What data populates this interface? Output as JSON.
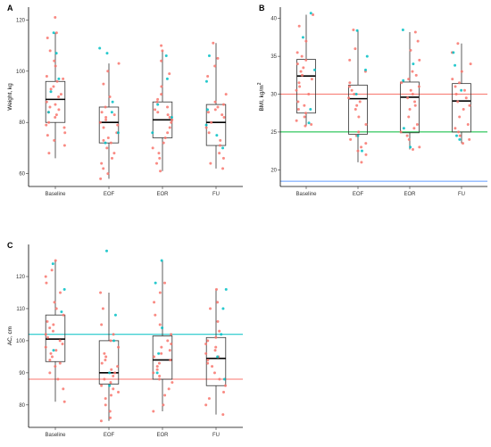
{
  "chart_data": [
    {
      "panel": "A",
      "type": "box",
      "xlabel": "",
      "ylabel": "Weight, kg",
      "categories": [
        "Baseline",
        "EOF",
        "EOR",
        "FU"
      ],
      "ylim": [
        55,
        125
      ],
      "yticks": [
        60,
        80,
        100,
        120
      ],
      "boxes": [
        {
          "min": 66,
          "q1": 80,
          "median": 89,
          "q3": 96,
          "max": 115
        },
        {
          "min": 58,
          "q1": 72,
          "median": 80,
          "q3": 86,
          "max": 103
        },
        {
          "min": 61,
          "q1": 74,
          "median": 81,
          "q3": 88,
          "max": 108
        },
        {
          "min": 62,
          "q1": 71,
          "median": 80,
          "q3": 87,
          "max": 111
        }
      ],
      "reference_lines": [],
      "points": [
        {
          "cat": 0,
          "values": [
            121,
            115,
            113,
            108,
            104,
            102,
            98,
            97,
            96,
            94,
            93,
            91,
            90,
            88,
            87,
            86,
            85,
            84,
            83,
            82,
            80,
            79,
            78,
            76,
            75,
            73,
            71,
            68
          ],
          "color": "#f8766d"
        },
        {
          "cat": 0,
          "values": [
            115,
            107,
            97,
            92,
            84
          ],
          "color": "#00bfc4"
        },
        {
          "cat": 1,
          "values": [
            103,
            100,
            95,
            90,
            86,
            84,
            83,
            82,
            81,
            80,
            79,
            78,
            76,
            74,
            73,
            72,
            70,
            68,
            66,
            64,
            62,
            60,
            58
          ],
          "color": "#f8766d"
        },
        {
          "cat": 1,
          "values": [
            109,
            107,
            88,
            84,
            76,
            72
          ],
          "color": "#00bfc4"
        },
        {
          "cat": 2,
          "values": [
            110,
            108,
            104,
            99,
            94,
            91,
            89,
            88,
            86,
            85,
            84,
            83,
            82,
            81,
            80,
            78,
            76,
            74,
            72,
            70,
            68,
            66,
            64,
            61
          ],
          "color": "#f8766d"
        },
        {
          "cat": 2,
          "values": [
            106,
            97,
            87,
            82,
            76
          ],
          "color": "#00bfc4"
        },
        {
          "cat": 3,
          "values": [
            111,
            105,
            102,
            98,
            91,
            88,
            87,
            86,
            85,
            84,
            83,
            82,
            80,
            78,
            76,
            73,
            71,
            68,
            66,
            64,
            62
          ],
          "color": "#f8766d"
        },
        {
          "cat": 3,
          "values": [
            106,
            96,
            85,
            79,
            75,
            70
          ],
          "color": "#00bfc4"
        }
      ]
    },
    {
      "panel": "B",
      "type": "box",
      "xlabel": "",
      "ylabel": "BMI, kg/m",
      "ylabel_superscript": "2",
      "categories": [
        "Baseline",
        "EOF",
        "EOR",
        "FU"
      ],
      "ylim": [
        17.8,
        41.5
      ],
      "yticks": [
        20,
        25,
        30,
        35,
        40
      ],
      "boxes": [
        {
          "min": 25.8,
          "q1": 27.5,
          "median": 32.4,
          "q3": 34.6,
          "max": 40.5
        },
        {
          "min": 21.0,
          "q1": 24.7,
          "median": 29.4,
          "q3": 31.2,
          "max": 38.5
        },
        {
          "min": 22.7,
          "q1": 24.9,
          "median": 29.6,
          "q3": 31.6,
          "max": 38.2
        },
        {
          "min": 23.5,
          "q1": 25.0,
          "median": 29.1,
          "q3": 31.4,
          "max": 36.7
        }
      ],
      "reference_lines": [
        {
          "y": 30,
          "color": "#f8766d"
        },
        {
          "y": 25,
          "color": "#00ba38"
        },
        {
          "y": 18.5,
          "color": "#619cff"
        }
      ],
      "points": [
        {
          "cat": 0,
          "values": [
            40.5,
            39.0,
            37.0,
            35.5,
            35.0,
            34.5,
            34.0,
            33.5,
            33.0,
            32.5,
            32.0,
            31.5,
            31.0,
            30.5,
            30.0,
            29.0,
            28.5,
            28.0,
            27.5,
            27.0,
            26.5,
            26.0,
            25.8
          ],
          "color": "#f8766d"
        },
        {
          "cat": 0,
          "values": [
            40.7,
            37.5,
            33.2,
            28.0,
            26.2
          ],
          "color": "#00bfc4"
        },
        {
          "cat": 1,
          "values": [
            38.5,
            36.0,
            34.5,
            33.0,
            31.5,
            31.0,
            30.5,
            30.0,
            29.5,
            29.0,
            28.5,
            28.0,
            27.0,
            26.0,
            25.0,
            24.5,
            24.0,
            23.5,
            23.0,
            22.5,
            22.0,
            21.0
          ],
          "color": "#f8766d"
        },
        {
          "cat": 1,
          "values": [
            38.4,
            35.0,
            33.2,
            30.0,
            24.5,
            22.5
          ],
          "color": "#00bfc4"
        },
        {
          "cat": 2,
          "values": [
            38.2,
            37.0,
            35.8,
            34.5,
            33.0,
            32.5,
            32.0,
            31.5,
            31.0,
            30.5,
            30.0,
            29.5,
            29.0,
            28.5,
            28.0,
            27.0,
            26.0,
            25.5,
            25.0,
            24.5,
            24.0,
            23.0,
            22.7
          ],
          "color": "#f8766d"
        },
        {
          "cat": 2,
          "values": [
            38.5,
            34.0,
            31.8,
            25.5,
            23.0
          ],
          "color": "#00bfc4"
        },
        {
          "cat": 3,
          "values": [
            36.7,
            35.5,
            34.0,
            33.0,
            32.0,
            31.5,
            31.0,
            30.5,
            30.0,
            29.5,
            29.0,
            28.5,
            28.0,
            27.0,
            26.0,
            25.5,
            25.0,
            24.5,
            24.0,
            23.5
          ],
          "color": "#f8766d"
        },
        {
          "cat": 3,
          "values": [
            35.5,
            33.8,
            30.5,
            24.5,
            24.0
          ],
          "color": "#00bfc4"
        }
      ]
    },
    {
      "panel": "C",
      "type": "box",
      "xlabel": "",
      "ylabel": "AC, cm",
      "categories": [
        "Baseline",
        "EOF",
        "EOR",
        "FU"
      ],
      "ylim": [
        73,
        130
      ],
      "yticks": [
        80,
        90,
        100,
        110,
        120
      ],
      "boxes": [
        {
          "min": 81,
          "q1": 93.5,
          "median": 100.5,
          "q3": 108,
          "max": 125
        },
        {
          "min": 75,
          "q1": 86.5,
          "median": 90,
          "q3": 100,
          "max": 115
        },
        {
          "min": 78,
          "q1": 88,
          "median": 94,
          "q3": 101.5,
          "max": 125
        },
        {
          "min": 77,
          "q1": 86,
          "median": 94.5,
          "q3": 101,
          "max": 116
        }
      ],
      "reference_lines": [
        {
          "y": 102,
          "color": "#00bfc4"
        },
        {
          "y": 88,
          "color": "#f8766d"
        }
      ],
      "points": [
        {
          "cat": 0,
          "values": [
            125,
            122,
            120,
            118,
            115,
            112,
            110,
            108,
            106,
            105,
            104,
            103,
            102,
            101,
            100,
            99,
            98,
            97,
            96,
            95,
            94,
            93,
            92,
            90,
            88,
            85,
            81
          ],
          "color": "#f8766d"
        },
        {
          "cat": 0,
          "values": [
            124,
            116,
            109,
            97
          ],
          "color": "#00bfc4"
        },
        {
          "cat": 1,
          "values": [
            115,
            110,
            105,
            102,
            100,
            98,
            96,
            95,
            94,
            93,
            92,
            91,
            90,
            89,
            88,
            87,
            86,
            85,
            84,
            83,
            82,
            80,
            78,
            76,
            75
          ],
          "color": "#f8766d"
        },
        {
          "cat": 1,
          "values": [
            128,
            108,
            100,
            90,
            86
          ],
          "color": "#00bfc4"
        },
        {
          "cat": 2,
          "values": [
            118,
            115,
            112,
            108,
            105,
            102,
            100,
            99,
            98,
            97,
            96,
            95,
            94,
            93,
            92,
            91,
            90,
            89,
            88,
            87,
            85,
            83,
            80,
            78
          ],
          "color": "#f8766d"
        },
        {
          "cat": 2,
          "values": [
            125,
            118,
            104,
            96,
            90
          ],
          "color": "#00bfc4"
        },
        {
          "cat": 3,
          "values": [
            116,
            112,
            110,
            106,
            103,
            101,
            100,
            99,
            98,
            97,
            96,
            95,
            94,
            93,
            92,
            90,
            88,
            86,
            84,
            82,
            80,
            77
          ],
          "color": "#f8766d"
        },
        {
          "cat": 3,
          "values": [
            116,
            110,
            102,
            95,
            88
          ],
          "color": "#00bfc4"
        }
      ]
    }
  ]
}
